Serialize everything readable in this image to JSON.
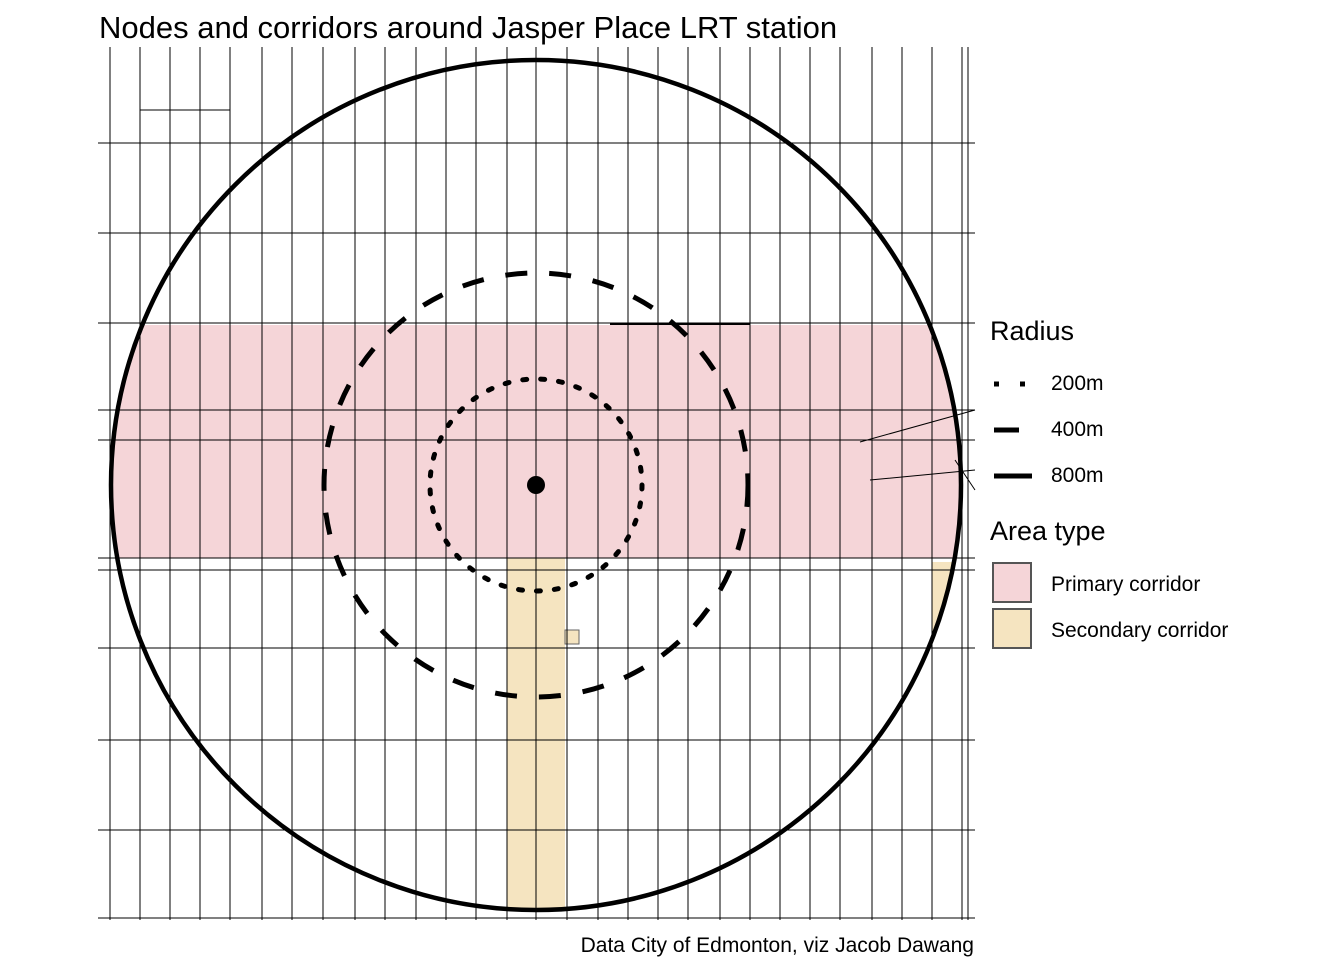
{
  "title": "Nodes and corridors around Jasper Place LRT station",
  "caption": "Data City of Edmonton, viz Jacob Dawang",
  "map": {
    "station_marker": "station-point",
    "rings": [
      {
        "label": "200m",
        "radius_m": 200,
        "linetype": "dotted"
      },
      {
        "label": "400m",
        "radius_m": 400,
        "linetype": "dashed"
      },
      {
        "label": "800m",
        "radius_m": 800,
        "linetype": "solid"
      }
    ],
    "areas": [
      {
        "label": "Primary corridor",
        "color": "#F5D5D8"
      },
      {
        "label": "Secondary corridor",
        "color": "#F5E4C0"
      }
    ]
  },
  "legend": {
    "radius_title": "Radius",
    "area_title": "Area type"
  }
}
